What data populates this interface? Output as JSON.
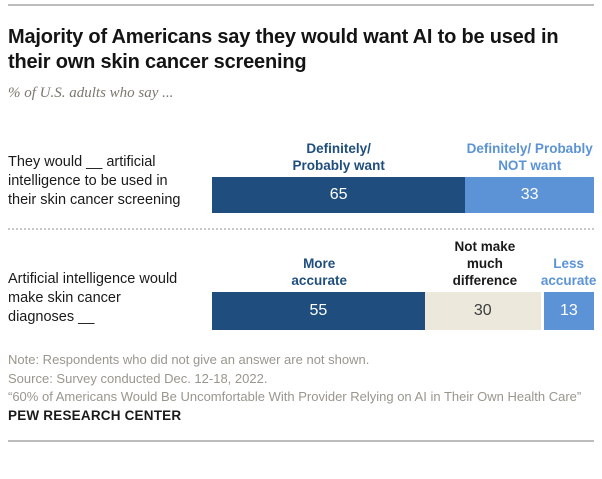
{
  "header": {
    "title": "Majority of Americans say they would want AI to be used in their own skin cancer screening",
    "subtitle": "% of U.S. adults who say ..."
  },
  "colors": {
    "dark_blue": "#1F4E7E",
    "light_blue": "#5B93D6",
    "beige": "#ECE8DC",
    "white": "#FFFFFF",
    "dark_text": "#3D3D3D",
    "black_text": "#1A1A1A",
    "rule_gray": "#BCBCBC",
    "note_gray": "#9A968E"
  },
  "chart_data": {
    "type": "bar",
    "orientation": "horizontal-stacked",
    "unit": "% of U.S. adults",
    "value_scale_total": 98,
    "rows": [
      {
        "label": "They would __ artificial\nintelligence to be used in\ntheir skin cancer screening",
        "segments": [
          {
            "header": "Definitely/\nProbably want",
            "value": 65,
            "color_key": "dark_blue",
            "header_color_key": "dark_blue",
            "value_color_key": "white",
            "divider_right": false
          },
          {
            "header": "Definitely/ Probably\nNOT want",
            "value": 33,
            "color_key": "light_blue",
            "header_color_key": "light_blue",
            "value_color_key": "white",
            "divider_right": false
          }
        ]
      },
      {
        "label": "Artificial intelligence would\nmake skin cancer\ndiagnoses __",
        "segments": [
          {
            "header": "More\naccurate",
            "value": 55,
            "color_key": "dark_blue",
            "header_color_key": "dark_blue",
            "value_color_key": "white",
            "divider_right": false
          },
          {
            "header": "Not make\nmuch\ndifference",
            "value": 30,
            "color_key": "beige",
            "header_color_key": "black_text",
            "value_color_key": "dark_text",
            "divider_right": true
          },
          {
            "header": "Less\naccurate",
            "value": 13,
            "color_key": "light_blue",
            "header_color_key": "light_blue",
            "value_color_key": "white",
            "divider_right": false
          }
        ]
      }
    ]
  },
  "footer": {
    "note": "Note: Respondents who did not give an answer are not shown.",
    "source": "Source: Survey conducted Dec. 12-18, 2022.",
    "report": "“60% of Americans Would Be Uncomfortable With Provider Relying on AI in Their Own Health Care”",
    "brand": "PEW RESEARCH CENTER"
  }
}
